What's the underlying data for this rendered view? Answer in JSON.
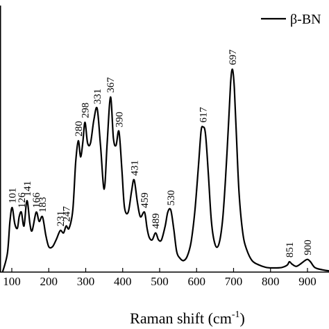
{
  "chart_data": {
    "type": "line",
    "xlabel": "Raman shift (cm",
    "xlabel_sup": "-1",
    "xlabel_close": ")",
    "ylabel": "",
    "xlim": [
      0,
      1000
    ],
    "xticks": [
      100,
      200,
      300,
      400,
      500,
      600,
      700,
      800,
      900
    ],
    "xtick_labels": [
      "100",
      "200",
      "300",
      "400",
      "500",
      "600",
      "700",
      "800",
      "900"
    ],
    "ylim": [
      0,
      1.0
    ],
    "grid": false,
    "legend": {
      "placement": "top-right",
      "entries": [
        "β-BN"
      ]
    },
    "series": [
      {
        "name": "β-BN",
        "color": "#000000",
        "x": [
          75,
          88,
          95,
          101,
          108,
          115,
          120,
          126,
          133,
          141,
          149,
          155,
          166,
          174,
          183,
          192,
          200,
          210,
          220,
          231,
          240,
          247,
          255,
          265,
          273,
          280,
          286,
          292,
          298,
          305,
          313,
          322,
          331,
          340,
          350,
          358,
          367,
          375,
          382,
          390,
          398,
          405,
          415,
          424,
          431,
          440,
          448,
          459,
          466,
          472,
          480,
          489,
          497,
          505,
          515,
          522,
          530,
          538,
          546,
          555,
          565,
          575,
          585,
          595,
          605,
          612,
          617,
          624,
          632,
          640,
          650,
          660,
          670,
          678,
          686,
          692,
          697,
          702,
          708,
          715,
          725,
          735,
          750,
          770,
          790,
          810,
          830,
          845,
          851,
          858,
          870,
          885,
          893,
          900,
          908,
          920,
          940,
          960,
          990
        ],
        "y": [
          0.0,
          0.08,
          0.22,
          0.28,
          0.21,
          0.19,
          0.24,
          0.26,
          0.2,
          0.31,
          0.21,
          0.18,
          0.26,
          0.22,
          0.24,
          0.16,
          0.11,
          0.11,
          0.14,
          0.18,
          0.17,
          0.2,
          0.19,
          0.27,
          0.48,
          0.57,
          0.5,
          0.56,
          0.65,
          0.56,
          0.56,
          0.66,
          0.71,
          0.55,
          0.36,
          0.56,
          0.76,
          0.58,
          0.55,
          0.61,
          0.44,
          0.28,
          0.26,
          0.35,
          0.4,
          0.3,
          0.24,
          0.26,
          0.19,
          0.15,
          0.14,
          0.17,
          0.14,
          0.14,
          0.2,
          0.26,
          0.27,
          0.19,
          0.09,
          0.06,
          0.05,
          0.07,
          0.13,
          0.26,
          0.46,
          0.61,
          0.63,
          0.6,
          0.42,
          0.22,
          0.12,
          0.12,
          0.22,
          0.4,
          0.63,
          0.82,
          0.88,
          0.8,
          0.58,
          0.34,
          0.17,
          0.1,
          0.05,
          0.03,
          0.02,
          0.018,
          0.02,
          0.03,
          0.045,
          0.035,
          0.025,
          0.04,
          0.05,
          0.055,
          0.045,
          0.02,
          0.01,
          0.005,
          0.003
        ]
      }
    ],
    "annotations": [
      {
        "text": "101",
        "x": 101,
        "y": 0.28
      },
      {
        "text": "126",
        "x": 126,
        "y": 0.26
      },
      {
        "text": "141",
        "x": 141,
        "y": 0.31
      },
      {
        "text": "166",
        "x": 166,
        "y": 0.26
      },
      {
        "text": "183",
        "x": 183,
        "y": 0.24
      },
      {
        "text": "231",
        "x": 231,
        "y": 0.18
      },
      {
        "text": "247",
        "x": 247,
        "y": 0.2
      },
      {
        "text": "280",
        "x": 280,
        "y": 0.57
      },
      {
        "text": "298",
        "x": 298,
        "y": 0.65
      },
      {
        "text": "331",
        "x": 331,
        "y": 0.71
      },
      {
        "text": "367",
        "x": 367,
        "y": 0.76
      },
      {
        "text": "390",
        "x": 390,
        "y": 0.61
      },
      {
        "text": "431",
        "x": 431,
        "y": 0.4
      },
      {
        "text": "459",
        "x": 459,
        "y": 0.26
      },
      {
        "text": "489",
        "x": 489,
        "y": 0.17
      },
      {
        "text": "530",
        "x": 530,
        "y": 0.27
      },
      {
        "text": "617",
        "x": 617,
        "y": 0.63
      },
      {
        "text": "697",
        "x": 697,
        "y": 0.88
      },
      {
        "text": "851",
        "x": 851,
        "y": 0.045
      },
      {
        "text": "900",
        "x": 900,
        "y": 0.055
      }
    ]
  }
}
